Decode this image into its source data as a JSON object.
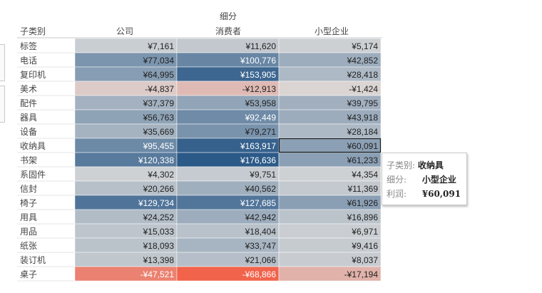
{
  "chart_data": {
    "type": "heatmap",
    "column_group_label": "细分",
    "row_header": "子类别",
    "columns": [
      "公司",
      "消费者",
      "小型企业"
    ],
    "rows": [
      "标签",
      "电话",
      "复印机",
      "美术",
      "配件",
      "器具",
      "设备",
      "收纳具",
      "书架",
      "系固件",
      "信封",
      "椅子",
      "用具",
      "用品",
      "纸张",
      "装订机",
      "桌子"
    ],
    "values": [
      [
        7161,
        11620,
        5174
      ],
      [
        77034,
        100776,
        42852
      ],
      [
        64995,
        153905,
        28418
      ],
      [
        -4837,
        -12913,
        -1424
      ],
      [
        37379,
        53958,
        39795
      ],
      [
        56763,
        92449,
        43918
      ],
      [
        35669,
        79271,
        28184
      ],
      [
        95455,
        163917,
        60091
      ],
      [
        120338,
        176636,
        61233
      ],
      [
        4302,
        9751,
        4354
      ],
      [
        20266,
        40562,
        11369
      ],
      [
        129734,
        127685,
        61926
      ],
      [
        24252,
        42942,
        16896
      ],
      [
        15033,
        18404,
        6971
      ],
      [
        18093,
        33747,
        9416
      ],
      [
        13398,
        21066,
        8037
      ],
      [
        -47521,
        -68866,
        -17194
      ]
    ],
    "labels": [
      [
        "¥7,161",
        "¥11,620",
        "¥5,174"
      ],
      [
        "¥77,034",
        "¥100,776",
        "¥42,852"
      ],
      [
        "¥64,995",
        "¥153,905",
        "¥28,418"
      ],
      [
        "-¥4,837",
        "-¥12,913",
        "-¥1,424"
      ],
      [
        "¥37,379",
        "¥53,958",
        "¥39,795"
      ],
      [
        "¥56,763",
        "¥92,449",
        "¥43,918"
      ],
      [
        "¥35,669",
        "¥79,271",
        "¥28,184"
      ],
      [
        "¥95,455",
        "¥163,917",
        "¥60,091"
      ],
      [
        "¥120,338",
        "¥176,636",
        "¥61,233"
      ],
      [
        "¥4,302",
        "¥9,751",
        "¥4,354"
      ],
      [
        "¥20,266",
        "¥40,562",
        "¥11,369"
      ],
      [
        "¥129,734",
        "¥127,685",
        "¥61,926"
      ],
      [
        "¥24,252",
        "¥42,942",
        "¥16,896"
      ],
      [
        "¥15,033",
        "¥18,404",
        "¥6,971"
      ],
      [
        "¥18,093",
        "¥33,747",
        "¥9,416"
      ],
      [
        "¥13,398",
        "¥21,066",
        "¥8,037"
      ],
      [
        "-¥47,521",
        "-¥68,866",
        "-¥17,194"
      ]
    ],
    "selected_cell": {
      "row": 7,
      "col": 2
    },
    "colors": {
      "positive_max": "#2a5887",
      "neutral": "#d9d9d9",
      "negative_max": "#f2614a"
    }
  },
  "tooltip": {
    "subcat_key": "子类别:",
    "subcat_value": "收纳具",
    "segment_key": "细分:",
    "segment_value": "小型企业",
    "profit_key": "利润:",
    "profit_value": "¥60,091"
  }
}
